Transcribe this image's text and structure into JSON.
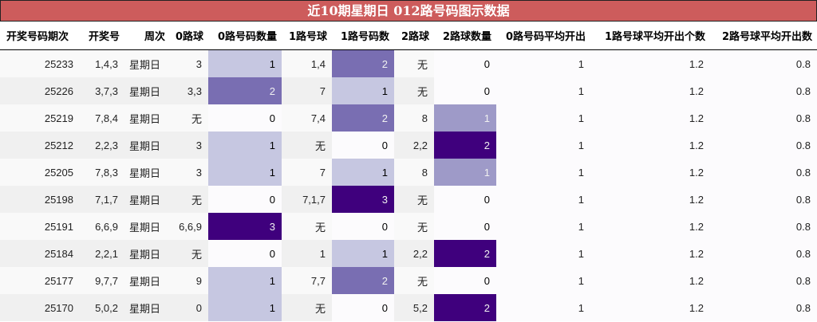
{
  "title": "近10期星期日 012路号码图示数据",
  "colors": {
    "title_bg": "#cd5c5c",
    "heat_0": "#fcfbfd",
    "heat_low": "#c6c7e1",
    "heat_mid_2路": "#9e9ac8",
    "heat_mid": "#796eb2",
    "heat_max": "#3f007d"
  },
  "columns": [
    "开奖号码期次",
    "开奖号",
    "周次",
    "0路球",
    "0路号码数量",
    "1路号球",
    "1路号码数",
    "2路球",
    "2路球数量",
    "0路号码平均开出",
    "1路号球平均开出个数",
    "2路号球平均开出数"
  ],
  "rows": [
    {
      "issue": "25233",
      "numbers": "1,4,3",
      "weekday": "星期日",
      "r0": "3",
      "r0n": "1",
      "r1": "1,4",
      "r1n": "2",
      "r2": "无",
      "r2n": "0",
      "avg0": "1",
      "avg1": "1.2",
      "avg2": "0.8"
    },
    {
      "issue": "25226",
      "numbers": "3,7,3",
      "weekday": "星期日",
      "r0": "3,3",
      "r0n": "2",
      "r1": "7",
      "r1n": "1",
      "r2": "无",
      "r2n": "0",
      "avg0": "1",
      "avg1": "1.2",
      "avg2": "0.8"
    },
    {
      "issue": "25219",
      "numbers": "7,8,4",
      "weekday": "星期日",
      "r0": "无",
      "r0n": "0",
      "r1": "7,4",
      "r1n": "2",
      "r2": "8",
      "r2n": "1",
      "avg0": "1",
      "avg1": "1.2",
      "avg2": "0.8"
    },
    {
      "issue": "25212",
      "numbers": "2,2,3",
      "weekday": "星期日",
      "r0": "3",
      "r0n": "1",
      "r1": "无",
      "r1n": "0",
      "r2": "2,2",
      "r2n": "2",
      "avg0": "1",
      "avg1": "1.2",
      "avg2": "0.8"
    },
    {
      "issue": "25205",
      "numbers": "7,8,3",
      "weekday": "星期日",
      "r0": "3",
      "r0n": "1",
      "r1": "7",
      "r1n": "1",
      "r2": "8",
      "r2n": "1",
      "avg0": "1",
      "avg1": "1.2",
      "avg2": "0.8"
    },
    {
      "issue": "25198",
      "numbers": "7,1,7",
      "weekday": "星期日",
      "r0": "无",
      "r0n": "0",
      "r1": "7,1,7",
      "r1n": "3",
      "r2": "无",
      "r2n": "0",
      "avg0": "1",
      "avg1": "1.2",
      "avg2": "0.8"
    },
    {
      "issue": "25191",
      "numbers": "6,6,9",
      "weekday": "星期日",
      "r0": "6,6,9",
      "r0n": "3",
      "r1": "无",
      "r1n": "0",
      "r2": "无",
      "r2n": "0",
      "avg0": "1",
      "avg1": "1.2",
      "avg2": "0.8"
    },
    {
      "issue": "25184",
      "numbers": "2,2,1",
      "weekday": "星期日",
      "r0": "无",
      "r0n": "0",
      "r1": "1",
      "r1n": "1",
      "r2": "2,2",
      "r2n": "2",
      "avg0": "1",
      "avg1": "1.2",
      "avg2": "0.8"
    },
    {
      "issue": "25177",
      "numbers": "9,7,7",
      "weekday": "星期日",
      "r0": "9",
      "r0n": "1",
      "r1": "7,7",
      "r1n": "2",
      "r2": "无",
      "r2n": "0",
      "avg0": "1",
      "avg1": "1.2",
      "avg2": "0.8"
    },
    {
      "issue": "25170",
      "numbers": "5,0,2",
      "weekday": "星期日",
      "r0": "0",
      "r0n": "1",
      "r1": "无",
      "r1n": "0",
      "r2": "5,2",
      "r2n": "2",
      "avg0": "1",
      "avg1": "1.2",
      "avg2": "0.8"
    }
  ]
}
